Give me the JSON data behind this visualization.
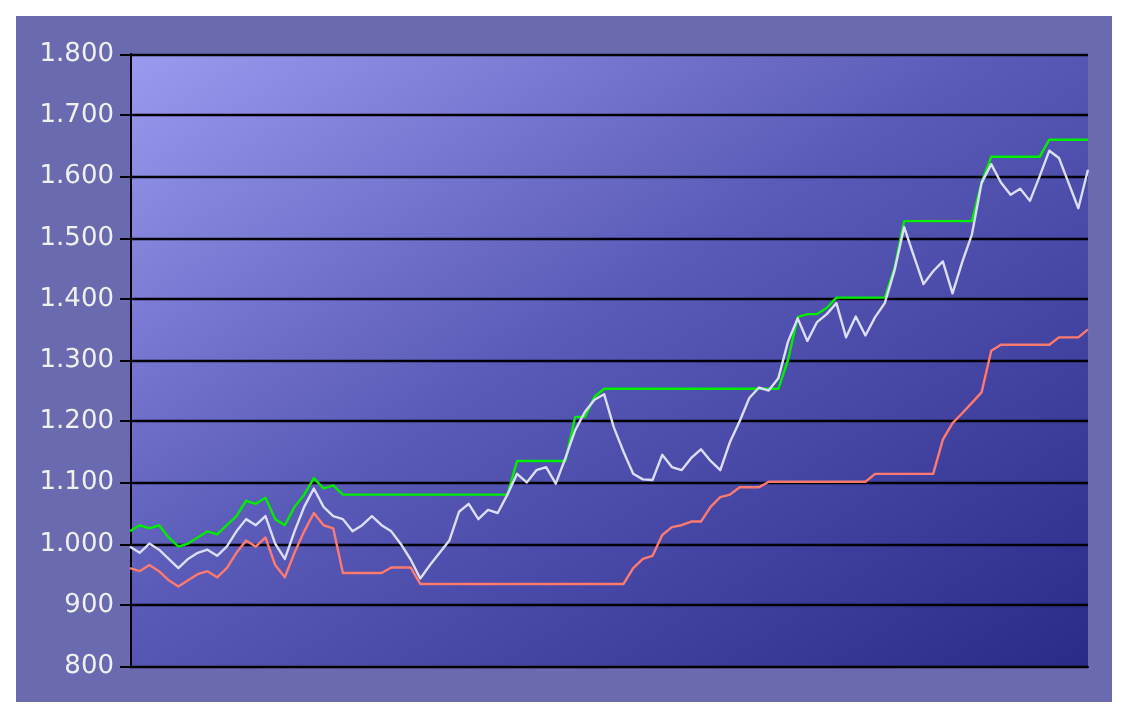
{
  "chart_data": {
    "type": "line",
    "categories": [
      null,
      null,
      null,
      null,
      null,
      null,
      null,
      null,
      null,
      null,
      null,
      null,
      null,
      null,
      null,
      null,
      null,
      null,
      null,
      null,
      null,
      null,
      null,
      null,
      null,
      null,
      null,
      null,
      null,
      null,
      null,
      null,
      null,
      null,
      null,
      null,
      null,
      null,
      null,
      null,
      null,
      null,
      null,
      null,
      null,
      null,
      null,
      null,
      null,
      null,
      null,
      null,
      null,
      null,
      null,
      null,
      null,
      null,
      null,
      null,
      null,
      null,
      null,
      null,
      null,
      null,
      null,
      null,
      null,
      null,
      null,
      null,
      null,
      null,
      null,
      null,
      null,
      null,
      null,
      null,
      null,
      null,
      null,
      null,
      null,
      null,
      null,
      null,
      null,
      null,
      null,
      null,
      null,
      null,
      null,
      null,
      null,
      null,
      null,
      null
    ],
    "series": [
      {
        "color": "#00ee00",
        "values": [
          1020,
          1030,
          1025,
          1030,
          1010,
          995,
          1000,
          1010,
          1020,
          1015,
          1030,
          1045,
          1070,
          1065,
          1075,
          1040,
          1030,
          1060,
          1080,
          1107,
          1090,
          1095,
          1080,
          1080,
          1080,
          1080,
          1080,
          1080,
          1080,
          1080,
          1080,
          1080,
          1080,
          1080,
          1080,
          1080,
          1080,
          1080,
          1080,
          1080,
          1135,
          1135,
          1135,
          1135,
          1135,
          1135,
          1207,
          1207,
          1240,
          1253,
          1253,
          1253,
          1253,
          1253,
          1253,
          1253,
          1253,
          1253,
          1253,
          1253,
          1253,
          1253,
          1253,
          1253,
          1253,
          1253,
          1253,
          1253,
          1300,
          1370,
          1375,
          1375,
          1385,
          1402,
          1402,
          1402,
          1402,
          1402,
          1402,
          1450,
          1527,
          1527,
          1527,
          1527,
          1527,
          1527,
          1527,
          1527,
          1590,
          1632,
          1632,
          1632,
          1632,
          1632,
          1632,
          1660,
          1660,
          1660,
          1660,
          1660
        ]
      },
      {
        "color": "#dcdcff",
        "values": [
          995,
          985,
          1000,
          990,
          975,
          960,
          975,
          985,
          990,
          980,
          995,
          1020,
          1040,
          1030,
          1045,
          1000,
          975,
          1020,
          1060,
          1090,
          1060,
          1045,
          1040,
          1020,
          1030,
          1045,
          1030,
          1020,
          999,
          974,
          943,
          965,
          985,
          1005,
          1052,
          1065,
          1040,
          1055,
          1050,
          1080,
          1114,
          1100,
          1120,
          1125,
          1098,
          1140,
          1185,
          1215,
          1235,
          1244,
          1190,
          1150,
          1114,
          1105,
          1104,
          1145,
          1125,
          1120,
          1140,
          1154,
          1135,
          1120,
          1166,
          1200,
          1238,
          1255,
          1250,
          1270,
          1330,
          1368,
          1331,
          1362,
          1375,
          1393,
          1337,
          1371,
          1340,
          1370,
          1393,
          1446,
          1517,
          1470,
          1424,
          1445,
          1461,
          1409,
          1460,
          1505,
          1589,
          1620,
          1590,
          1570,
          1580,
          1560,
          1600,
          1642,
          1630,
          1589,
          1548,
          1611
        ]
      },
      {
        "color": "#ff7a6e",
        "values": [
          960,
          955,
          965,
          955,
          940,
          930,
          940,
          950,
          955,
          945,
          960,
          985,
          1005,
          995,
          1010,
          965,
          945,
          985,
          1020,
          1050,
          1030,
          1025,
          952,
          952,
          952,
          952,
          952,
          961,
          961,
          961,
          934,
          934,
          934,
          934,
          934,
          934,
          934,
          934,
          934,
          934,
          934,
          934,
          934,
          934,
          934,
          934,
          934,
          934,
          934,
          934,
          934,
          934,
          960,
          975,
          980,
          1014,
          1027,
          1030,
          1036,
          1036,
          1060,
          1076,
          1080,
          1092,
          1092,
          1092,
          1101,
          1101,
          1101,
          1101,
          1101,
          1101,
          1101,
          1101,
          1101,
          1101,
          1101,
          1114,
          1114,
          1114,
          1114,
          1114,
          1114,
          1114,
          1170,
          1197,
          1213,
          1230,
          1247,
          1315,
          1325,
          1325,
          1325,
          1325,
          1325,
          1325,
          1337,
          1337,
          1337,
          1350
        ]
      }
    ],
    "ylim": [
      800,
      1800
    ],
    "yticks": [
      {
        "value": 800,
        "label": "800"
      },
      {
        "value": 900,
        "label": "900"
      },
      {
        "value": 1000,
        "label": "1.000"
      },
      {
        "value": 1100,
        "label": "1.100"
      },
      {
        "value": 1200,
        "label": "1.200"
      },
      {
        "value": 1300,
        "label": "1.300"
      },
      {
        "value": 1400,
        "label": "1.400"
      },
      {
        "value": 1500,
        "label": "1.500"
      },
      {
        "value": 1600,
        "label": "1.600"
      },
      {
        "value": 1700,
        "label": "1.700"
      },
      {
        "value": 1800,
        "label": "1.800"
      }
    ],
    "grid": "y",
    "line_style": "solid",
    "tick_labels": "y"
  }
}
